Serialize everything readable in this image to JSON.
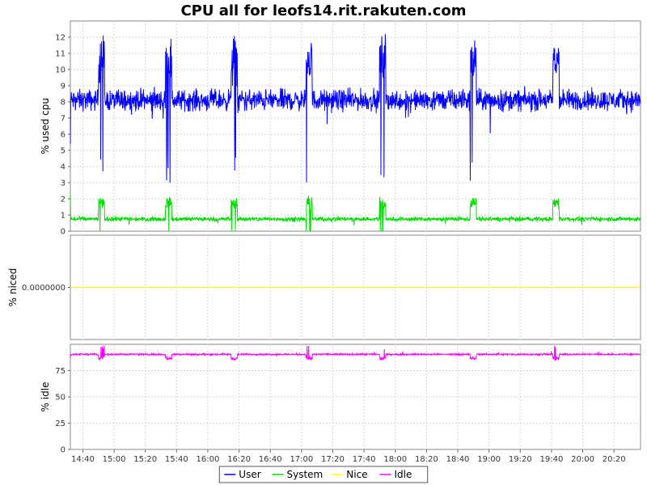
{
  "chart_data": {
    "type": "line",
    "title": "CPU all for leofs14.rit.rakuten.com",
    "x_start": "14:32",
    "x_end": "20:37",
    "x_step_minutes": 1,
    "x_ticks": [
      "14:40",
      "15:00",
      "15:20",
      "15:40",
      "16:00",
      "16:20",
      "16:40",
      "17:00",
      "17:20",
      "17:40",
      "18:00",
      "18:20",
      "18:40",
      "19:00",
      "19:20",
      "19:40",
      "20:00",
      "20:20"
    ],
    "legend": {
      "placement": "bottom-center",
      "entries": [
        {
          "name": "User",
          "color": "#0000ff"
        },
        {
          "name": "System",
          "color": "#00dd00"
        },
        {
          "name": "Nice",
          "color": "#ffff00"
        },
        {
          "name": "Idle",
          "color": "#ff00ff"
        }
      ]
    },
    "panels": [
      {
        "ylabel": "% used cpu",
        "ylim": [
          0,
          13
        ],
        "yticks": [
          "0",
          "1",
          "2",
          "3",
          "4",
          "5",
          "6",
          "7",
          "8",
          "9",
          "10",
          "11",
          "12"
        ],
        "grid": true,
        "bursts": [
          {
            "start": "14:50",
            "end": "14:54"
          },
          {
            "start": "15:33",
            "end": "15:37"
          },
          {
            "start": "16:15",
            "end": "16:19"
          },
          {
            "start": "17:03",
            "end": "17:07"
          },
          {
            "start": "17:50",
            "end": "17:54"
          },
          {
            "start": "18:48",
            "end": "18:52"
          },
          {
            "start": "19:41",
            "end": "19:45"
          }
        ],
        "series": [
          {
            "name": "User",
            "color": "#0000ff",
            "baseline": 8.1,
            "noise": 0.55,
            "burst_level": 10.6,
            "burst_noise": 1.3,
            "first_value": 5.4
          },
          {
            "name": "System",
            "color": "#00dd00",
            "baseline": 0.75,
            "noise": 0.12,
            "burst_level": 1.75,
            "burst_noise": 0.3,
            "first_value": 2.3
          }
        ]
      },
      {
        "ylabel": "% niced",
        "ylim": [
          -1,
          1
        ],
        "yticks": [
          "0.0000000"
        ],
        "grid": true,
        "series": [
          {
            "name": "Nice",
            "color": "#ffff00",
            "constant": 0
          }
        ]
      },
      {
        "ylabel": "% idle",
        "ylim": [
          0,
          100
        ],
        "yticks": [
          "0",
          "25",
          "50",
          "75"
        ],
        "grid": true,
        "series": [
          {
            "name": "Idle",
            "color": "#ff00ff",
            "baseline": 90.5,
            "noise": 0.7,
            "burst_level": 86.5,
            "burst_noise": 1.4,
            "first_value": 87
          }
        ]
      }
    ]
  }
}
